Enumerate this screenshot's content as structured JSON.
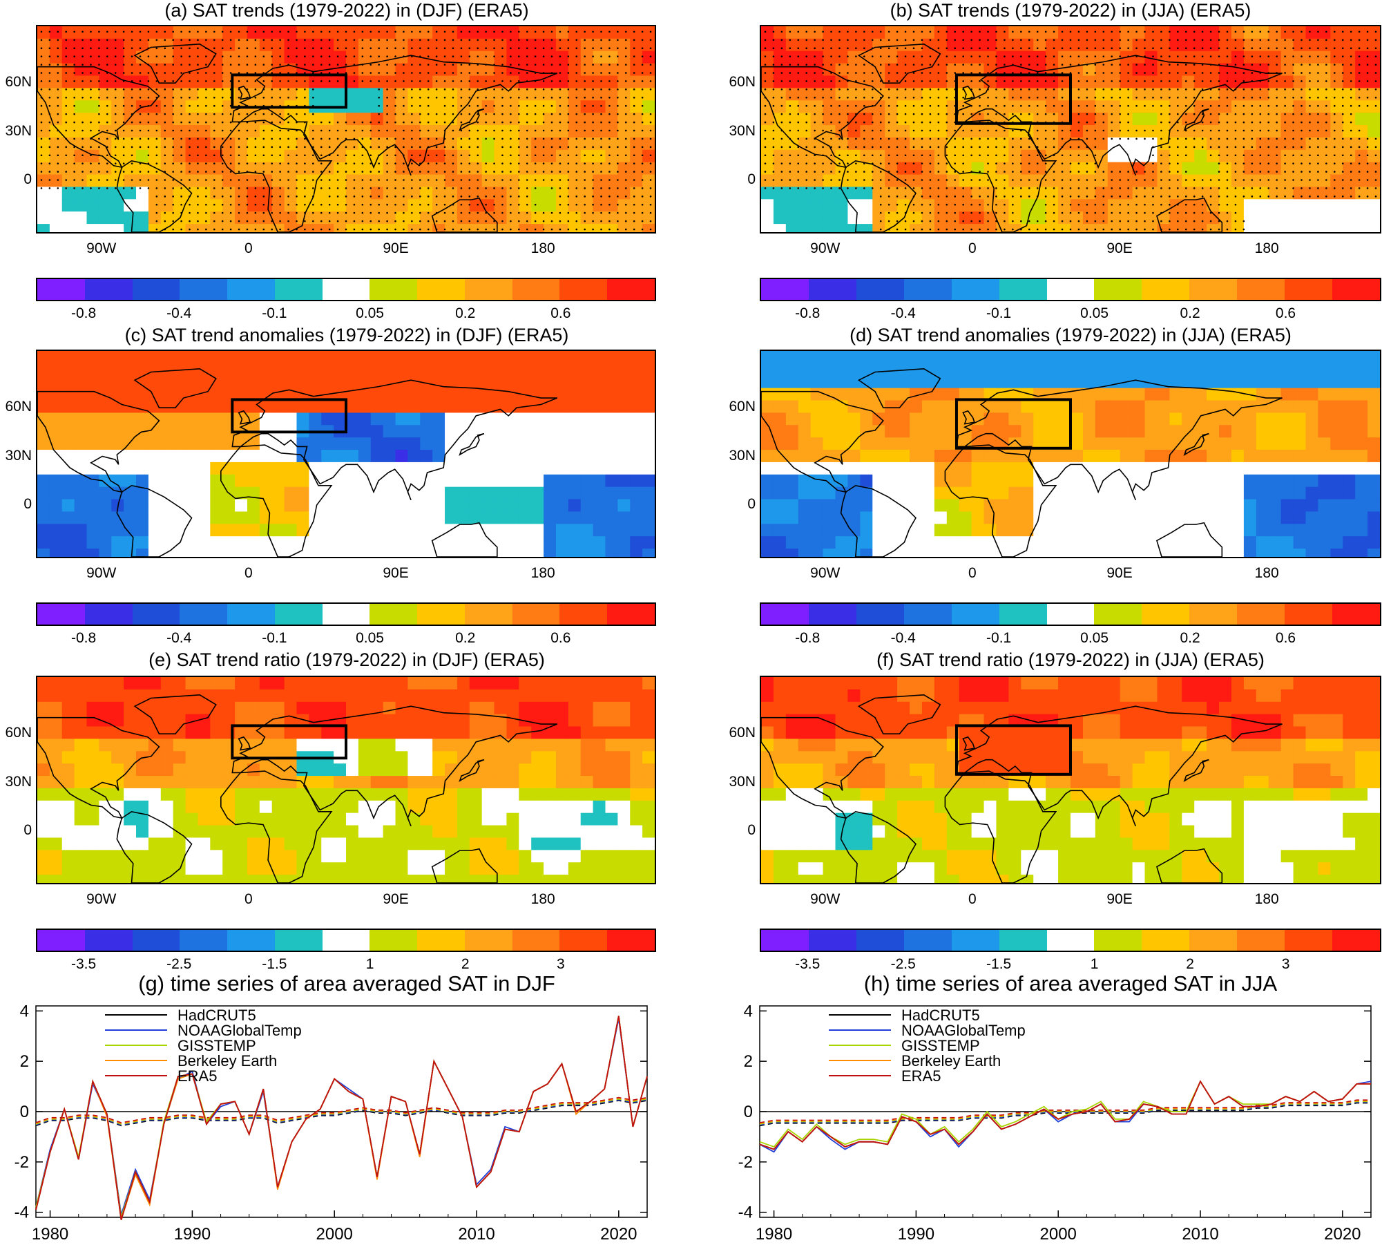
{
  "maps": [
    {
      "id": "a",
      "title": "(a) SAT trends (1979-2022) in (DJF) (ERA5)",
      "scheme": "trend",
      "season": "DJF",
      "box": "45-65N, 10W-60E",
      "stippled": true
    },
    {
      "id": "b",
      "title": "(b) SAT trends (1979-2022) in (JJA) (ERA5)",
      "scheme": "trend",
      "season": "JJA",
      "box": "35-65N, 10W-60E",
      "stippled": true
    },
    {
      "id": "c",
      "title": "(c) SAT trend anomalies (1979-2022) in (DJF) (ERA5)",
      "scheme": "anom",
      "season": "DJF",
      "box": "45-65N, 10W-60E",
      "stippled": false
    },
    {
      "id": "d",
      "title": "(d) SAT trend anomalies (1979-2022) in (JJA) (ERA5)",
      "scheme": "anom",
      "season": "JJA",
      "box": "35-65N, 10W-60E",
      "stippled": false
    },
    {
      "id": "e",
      "title": "(e) SAT trend ratio (1979-2022) in (DJF) (ERA5)",
      "scheme": "ratio",
      "season": "DJF",
      "box": "45-65N, 10W-60E",
      "stippled": false
    },
    {
      "id": "f",
      "title": "(f) SAT trend ratio (1979-2022) in (JJA) (ERA5)",
      "scheme": "ratio",
      "season": "JJA",
      "box": "35-65N, 10W-60E",
      "stippled": false
    }
  ],
  "lat_ticks": [
    "60N",
    "30N",
    "0"
  ],
  "lon_ticks": [
    "90W",
    "0",
    "90E",
    "180"
  ],
  "colorbars": {
    "colors": [
      "#7f1fff",
      "#3a2ee6",
      "#1f4fd9",
      "#1e73e0",
      "#1e98ea",
      "#1fc1c1",
      "#ffffff",
      "#c8dc00",
      "#ffc600",
      "#ffa318",
      "#ff7b14",
      "#ff4a0a",
      "#ff1a12"
    ],
    "trend_labels": [
      "-0.8",
      "-0.4",
      "-0.1",
      "0.05",
      "0.2",
      "0.6"
    ],
    "ratio_labels": [
      "-3.5",
      "-2.5",
      "-1.5",
      "1",
      "2",
      "3"
    ]
  },
  "timeseries": [
    {
      "title": "(g) time series of area averaged SAT in DJF",
      "season": "DJF"
    },
    {
      "title": "(h) time series of area averaged SAT in JJA",
      "season": "JJA"
    }
  ],
  "chart_data": [
    {
      "type": "line",
      "title": "(g) time series of area averaged SAT in DJF",
      "xlim": [
        1979,
        2022
      ],
      "ylim": [
        -4.2,
        4.2
      ],
      "x_ticks": [
        1980,
        1990,
        2000,
        2010,
        2020
      ],
      "y_ticks": [
        -4,
        -2,
        0,
        2,
        4
      ],
      "legend": [
        "HadCRUT5",
        "NOAAGlobalTemp",
        "GISSTEMP",
        "Berkeley Earth",
        "ERA5"
      ],
      "colors": {
        "HadCRUT5": "#000000",
        "NOAAGlobalTemp": "#1f3fd8",
        "GISSTEMP": "#a8d400",
        "Berkeley Earth": "#ff8c00",
        "ERA5": "#c01010"
      },
      "x": [
        1979,
        1980,
        1981,
        1982,
        1983,
        1984,
        1985,
        1986,
        1987,
        1988,
        1989,
        1990,
        1991,
        1992,
        1993,
        1994,
        1995,
        1996,
        1997,
        1998,
        1999,
        2000,
        2001,
        2002,
        2003,
        2004,
        2005,
        2006,
        2007,
        2008,
        2009,
        2010,
        2011,
        2012,
        2013,
        2014,
        2015,
        2016,
        2017,
        2018,
        2019,
        2020,
        2021,
        2022
      ],
      "series": [
        {
          "name": "HadCRUT5",
          "values": [
            -3.9,
            -1.6,
            0.1,
            -1.9,
            1.2,
            -0.1,
            -4.3,
            -2.4,
            -3.6,
            -0.5,
            1.4,
            1.5,
            -0.5,
            0.3,
            0.4,
            -0.9,
            0.9,
            -3.0,
            -1.2,
            -0.3,
            0.1,
            1.3,
            0.8,
            0.5,
            -2.6,
            0.6,
            0.4,
            -1.7,
            2.0,
            0.9,
            -0.2,
            -3.0,
            -2.4,
            -0.7,
            -0.8,
            0.8,
            1.1,
            1.9,
            0.0,
            0.4,
            0.9,
            3.8,
            -0.6,
            1.4
          ]
        },
        {
          "name": "NOAAGlobalTemp",
          "values": [
            -3.8,
            -1.5,
            0.1,
            -1.9,
            1.1,
            -0.1,
            -4.1,
            -2.3,
            -3.5,
            -0.5,
            1.3,
            1.6,
            -0.5,
            0.2,
            0.4,
            -0.9,
            0.8,
            -3.0,
            -1.2,
            -0.3,
            0.1,
            1.3,
            0.9,
            0.5,
            -2.6,
            0.6,
            0.4,
            -1.7,
            2.0,
            0.9,
            -0.2,
            -2.9,
            -2.3,
            -0.6,
            -0.8,
            0.8,
            1.1,
            1.9,
            0.0,
            0.4,
            0.9,
            3.7,
            -0.6,
            1.4
          ]
        },
        {
          "name": "GISSTEMP",
          "values": [
            -3.8,
            -1.6,
            0.1,
            -1.8,
            1.2,
            -0.1,
            -4.2,
            -2.4,
            -3.6,
            -0.4,
            1.4,
            1.5,
            -0.4,
            0.3,
            0.4,
            -0.9,
            0.9,
            -3.0,
            -1.2,
            -0.3,
            0.1,
            1.3,
            0.8,
            0.5,
            -2.6,
            0.6,
            0.4,
            -1.7,
            2.0,
            0.9,
            -0.2,
            -3.0,
            -2.4,
            -0.7,
            -0.8,
            0.8,
            1.1,
            1.9,
            0.0,
            0.4,
            0.9,
            3.8,
            -0.6,
            1.4
          ]
        },
        {
          "name": "Berkeley Earth",
          "values": [
            -3.9,
            -1.6,
            0.1,
            -1.9,
            1.2,
            -0.2,
            -4.3,
            -2.5,
            -3.7,
            -0.5,
            1.3,
            1.5,
            -0.5,
            0.3,
            0.4,
            -0.9,
            0.9,
            -3.1,
            -1.2,
            -0.3,
            0.1,
            1.3,
            0.8,
            0.5,
            -2.7,
            0.6,
            0.4,
            -1.8,
            2.0,
            0.9,
            -0.2,
            -3.0,
            -2.4,
            -0.7,
            -0.8,
            0.8,
            1.1,
            1.9,
            -0.1,
            0.4,
            0.9,
            3.8,
            -0.6,
            1.4
          ]
        },
        {
          "name": "ERA5",
          "values": [
            -3.9,
            -1.6,
            0.1,
            -1.9,
            1.2,
            -0.1,
            -4.3,
            -2.4,
            -3.6,
            -0.5,
            1.4,
            1.5,
            -0.5,
            0.3,
            0.4,
            -0.9,
            0.9,
            -3.0,
            -1.2,
            -0.3,
            0.1,
            1.3,
            0.8,
            0.5,
            -2.6,
            0.6,
            0.4,
            -1.7,
            2.0,
            0.9,
            -0.2,
            -3.0,
            -2.4,
            -0.7,
            -0.8,
            0.8,
            1.1,
            1.9,
            0.0,
            0.4,
            0.9,
            3.8,
            -0.6,
            1.4
          ]
        }
      ],
      "trend": [
        -0.5,
        -0.3,
        -0.3,
        -0.2,
        -0.2,
        -0.3,
        -0.5,
        -0.4,
        -0.3,
        -0.3,
        -0.2,
        -0.2,
        -0.3,
        -0.3,
        -0.3,
        -0.2,
        -0.2,
        -0.4,
        -0.3,
        -0.2,
        -0.1,
        -0.1,
        0.0,
        0.1,
        0.0,
        0.0,
        -0.1,
        0.0,
        0.1,
        0.0,
        -0.1,
        -0.1,
        -0.1,
        0.0,
        0.0,
        0.1,
        0.2,
        0.3,
        0.3,
        0.3,
        0.4,
        0.5,
        0.4,
        0.5
      ]
    },
    {
      "type": "line",
      "title": "(h) time series of area averaged SAT in JJA",
      "xlim": [
        1979,
        2022
      ],
      "ylim": [
        -4.2,
        4.2
      ],
      "x_ticks": [
        1980,
        1990,
        2000,
        2010,
        2020
      ],
      "y_ticks": [
        -4,
        -2,
        0,
        2,
        4
      ],
      "legend": [
        "HadCRUT5",
        "NOAAGlobalTemp",
        "GISSTEMP",
        "Berkeley Earth",
        "ERA5"
      ],
      "colors": {
        "HadCRUT5": "#000000",
        "NOAAGlobalTemp": "#1f3fd8",
        "GISSTEMP": "#a8d400",
        "Berkeley Earth": "#ff8c00",
        "ERA5": "#c01010"
      },
      "x": [
        1979,
        1980,
        1981,
        1982,
        1983,
        1984,
        1985,
        1986,
        1987,
        1988,
        1989,
        1990,
        1991,
        1992,
        1993,
        1994,
        1995,
        1996,
        1997,
        1998,
        1999,
        2000,
        2001,
        2002,
        2003,
        2004,
        2005,
        2006,
        2007,
        2008,
        2009,
        2010,
        2011,
        2012,
        2013,
        2014,
        2015,
        2016,
        2017,
        2018,
        2019,
        2020,
        2021,
        2022
      ],
      "series": [
        {
          "name": "HadCRUT5",
          "values": [
            -1.3,
            -1.5,
            -0.8,
            -1.2,
            -0.6,
            -1.0,
            -1.4,
            -1.2,
            -1.2,
            -1.3,
            -0.2,
            -0.4,
            -0.9,
            -0.7,
            -1.3,
            -0.8,
            -0.1,
            -0.7,
            -0.5,
            -0.2,
            0.1,
            -0.3,
            -0.1,
            0.0,
            0.3,
            -0.4,
            -0.3,
            0.3,
            0.2,
            -0.1,
            -0.1,
            1.2,
            0.3,
            0.6,
            0.2,
            0.2,
            0.3,
            0.6,
            0.4,
            0.8,
            0.4,
            0.5,
            1.1,
            1.1
          ]
        },
        {
          "name": "NOAAGlobalTemp",
          "values": [
            -1.3,
            -1.6,
            -0.8,
            -1.2,
            -0.6,
            -1.1,
            -1.5,
            -1.2,
            -1.2,
            -1.3,
            -0.2,
            -0.4,
            -1.0,
            -0.7,
            -1.4,
            -0.8,
            -0.1,
            -0.7,
            -0.5,
            -0.2,
            0.1,
            -0.4,
            -0.1,
            0.0,
            0.3,
            -0.4,
            -0.4,
            0.3,
            0.2,
            -0.1,
            -0.1,
            1.2,
            0.3,
            0.6,
            0.2,
            0.2,
            0.3,
            0.6,
            0.4,
            0.8,
            0.4,
            0.5,
            1.1,
            1.2
          ]
        },
        {
          "name": "GISSTEMP",
          "values": [
            -1.2,
            -1.4,
            -0.7,
            -1.1,
            -0.5,
            -1.0,
            -1.3,
            -1.1,
            -1.1,
            -1.2,
            -0.1,
            -0.3,
            -0.9,
            -0.6,
            -1.2,
            -0.7,
            0.0,
            -0.6,
            -0.4,
            -0.1,
            0.2,
            -0.3,
            0.0,
            0.1,
            0.4,
            -0.3,
            -0.3,
            0.4,
            0.2,
            0.0,
            0.0,
            1.2,
            0.3,
            0.6,
            0.3,
            0.3,
            0.3,
            0.6,
            0.4,
            0.8,
            0.4,
            0.5,
            1.1,
            1.1
          ]
        },
        {
          "name": "Berkeley Earth",
          "values": [
            -1.3,
            -1.5,
            -0.8,
            -1.2,
            -0.6,
            -1.0,
            -1.4,
            -1.2,
            -1.2,
            -1.3,
            -0.2,
            -0.4,
            -0.9,
            -0.7,
            -1.3,
            -0.8,
            -0.1,
            -0.7,
            -0.5,
            -0.2,
            0.1,
            -0.3,
            -0.1,
            0.0,
            0.3,
            -0.4,
            -0.3,
            0.3,
            0.2,
            -0.1,
            -0.1,
            1.2,
            0.3,
            0.6,
            0.2,
            0.2,
            0.3,
            0.6,
            0.4,
            0.8,
            0.4,
            0.5,
            1.1,
            1.1
          ]
        },
        {
          "name": "ERA5",
          "values": [
            -1.3,
            -1.5,
            -0.8,
            -1.2,
            -0.6,
            -1.0,
            -1.4,
            -1.2,
            -1.2,
            -1.3,
            -0.2,
            -0.4,
            -0.9,
            -0.7,
            -1.3,
            -0.8,
            -0.1,
            -0.7,
            -0.5,
            -0.2,
            0.1,
            -0.3,
            -0.1,
            0.0,
            0.3,
            -0.4,
            -0.3,
            0.3,
            0.2,
            -0.1,
            -0.1,
            1.2,
            0.3,
            0.6,
            0.2,
            0.2,
            0.3,
            0.6,
            0.4,
            0.8,
            0.4,
            0.5,
            1.1,
            1.1
          ]
        }
      ],
      "trend": [
        -0.5,
        -0.4,
        -0.4,
        -0.4,
        -0.4,
        -0.4,
        -0.4,
        -0.4,
        -0.4,
        -0.4,
        -0.3,
        -0.3,
        -0.3,
        -0.3,
        -0.3,
        -0.2,
        -0.2,
        -0.2,
        -0.1,
        -0.1,
        0.0,
        0.0,
        0.0,
        0.0,
        0.0,
        0.0,
        0.0,
        0.0,
        0.1,
        0.1,
        0.1,
        0.1,
        0.1,
        0.1,
        0.1,
        0.2,
        0.2,
        0.3,
        0.3,
        0.3,
        0.3,
        0.3,
        0.4,
        0.4
      ]
    }
  ]
}
